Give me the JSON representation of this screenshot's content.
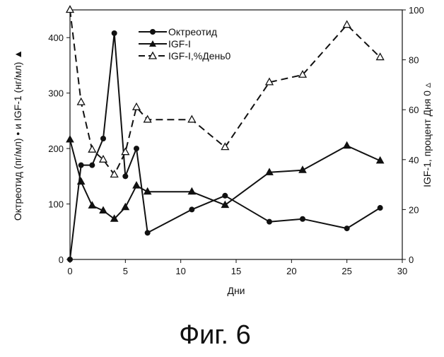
{
  "figure": {
    "caption": "Фиг. 6"
  },
  "chart_data": {
    "type": "line",
    "title": "",
    "xlabel": "Дни",
    "ylabel_left": "Октреотид (пг/мл) • и IGF-1 (нг/мл) ▲",
    "ylabel_right": "IGF-1, процент Дня 0 ▵",
    "xlim": [
      0,
      30
    ],
    "ylim_left": [
      0,
      450
    ],
    "ylim_right": [
      0,
      100
    ],
    "x_ticks": [
      0,
      5,
      10,
      15,
      20,
      25,
      30
    ],
    "y_left_ticks": [
      0,
      100,
      200,
      300,
      400
    ],
    "y_right_ticks": [
      0,
      20,
      40,
      60,
      80,
      100
    ],
    "grid": false,
    "legend_position": "top-right",
    "series": [
      {
        "name": "Октреотид",
        "axis": "left",
        "marker": "circle",
        "line": "solid",
        "x": [
          0,
          1,
          2,
          3,
          4,
          5,
          6,
          7,
          11,
          14,
          18,
          21,
          25,
          28
        ],
        "y": [
          0,
          170,
          170,
          218,
          408,
          150,
          200,
          48,
          90,
          115,
          68,
          73,
          56,
          93
        ]
      },
      {
        "name": "IGF-I",
        "axis": "left",
        "marker": "triangle-filled",
        "line": "solid",
        "x": [
          0,
          1,
          2,
          3,
          4,
          5,
          6,
          7,
          11,
          14,
          18,
          21,
          25,
          28
        ],
        "y": [
          216,
          140,
          97,
          88,
          73,
          94,
          133,
          122,
          122,
          98,
          157,
          161,
          205,
          178
        ]
      },
      {
        "name": "IGF-I,%День0",
        "axis": "right",
        "marker": "triangle-open",
        "line": "dashed",
        "x": [
          0,
          1,
          2,
          3,
          4,
          5,
          6,
          7,
          11,
          14,
          18,
          21,
          25,
          28
        ],
        "y": [
          100,
          63,
          44,
          40,
          34,
          43,
          61,
          56,
          56,
          45,
          71,
          74,
          94,
          81
        ]
      }
    ]
  }
}
